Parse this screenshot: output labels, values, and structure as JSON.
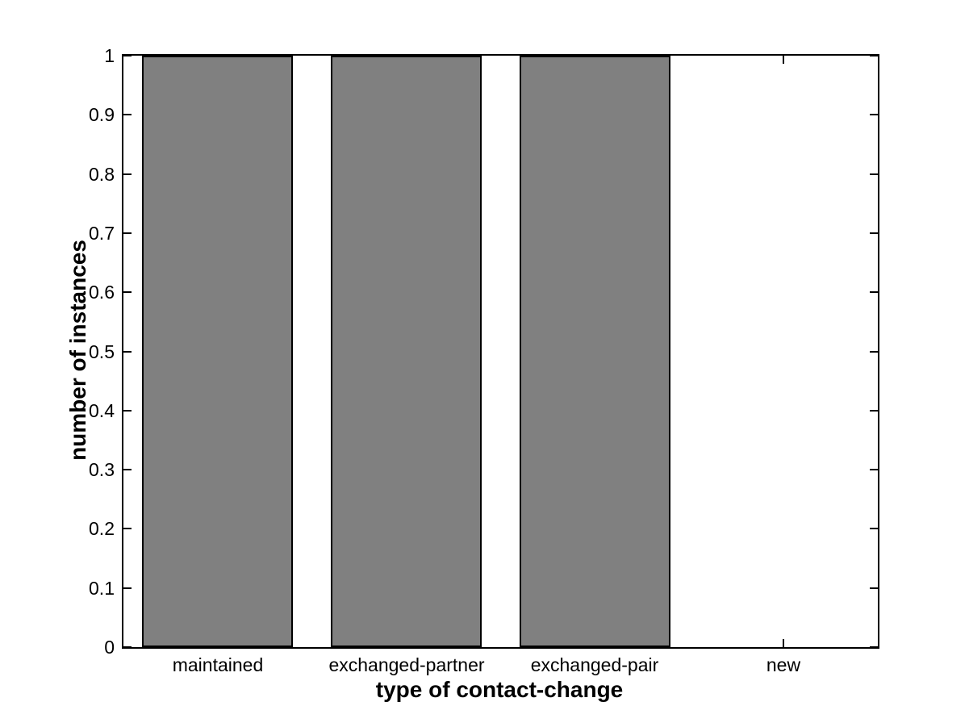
{
  "chart_data": {
    "type": "bar",
    "title": "",
    "xlabel": "type of contact-change",
    "ylabel": "number of instances",
    "categories": [
      "maintained",
      "exchanged-partner",
      "exchanged-pair",
      "new"
    ],
    "values": [
      1,
      1,
      1,
      0
    ],
    "ylim": [
      0,
      1
    ],
    "yticks": [
      0,
      0.1,
      0.2,
      0.3,
      0.4,
      0.5,
      0.6,
      0.7,
      0.8,
      0.9,
      1
    ],
    "ytick_labels": [
      "0",
      "0.1",
      "0.2",
      "0.3",
      "0.4",
      "0.5",
      "0.6",
      "0.7",
      "0.8",
      "0.9",
      "1"
    ],
    "bar_width_fraction": 0.8,
    "bar_fill_color": "#808080",
    "bar_edge_color": "#000000",
    "axis_color": "#000000",
    "background_color": "#ffffff",
    "grid": false,
    "legend": null,
    "tick_direction": "in"
  }
}
